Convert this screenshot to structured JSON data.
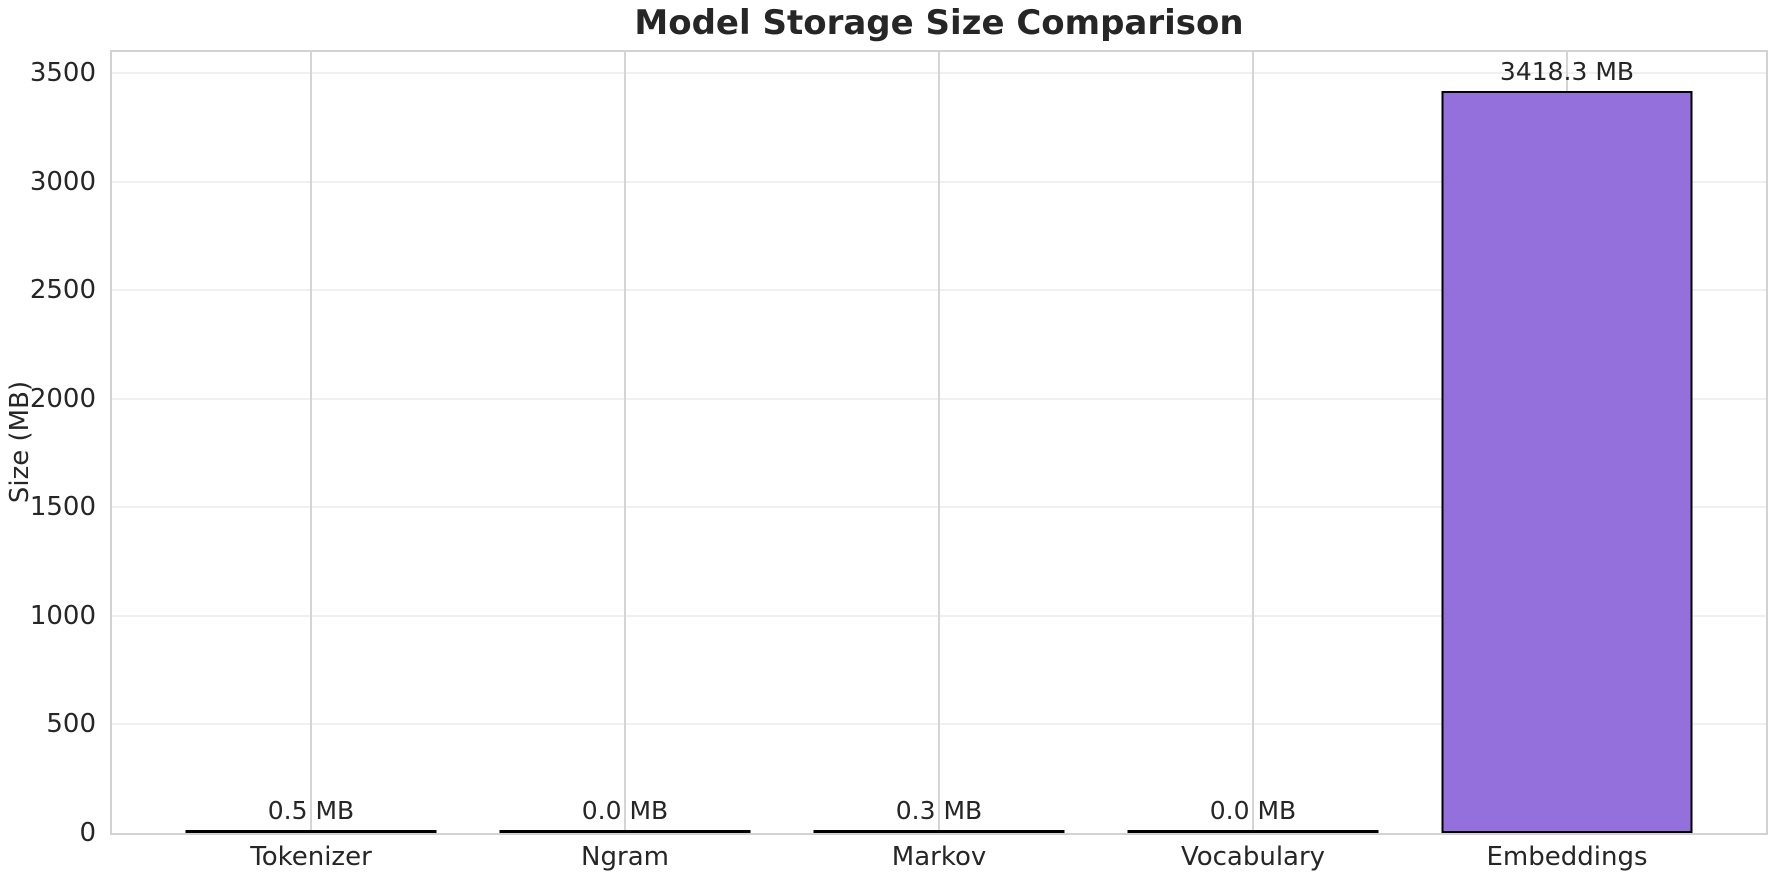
{
  "chart_data": {
    "type": "bar",
    "title": "Model Storage Size Comparison",
    "ylabel": "Size (MB)",
    "xlabel": "",
    "categories": [
      "Tokenizer",
      "Ngram",
      "Markov",
      "Vocabulary",
      "Embeddings"
    ],
    "values": [
      0.5,
      0.0,
      0.3,
      0.0,
      3418.3
    ],
    "value_labels": [
      "0.5 MB",
      "0.0 MB",
      "0.3 MB",
      "0.0 MB",
      "3418.3 MB"
    ],
    "yticks": [
      0,
      500,
      1000,
      1500,
      2000,
      2500,
      3000,
      3500
    ],
    "ylim": [
      0,
      3598
    ],
    "grid": true,
    "legend": false,
    "bar_color": "#9370DB",
    "bar_edge_color": "#000000",
    "text_color": "#262626",
    "grid_color_h": "#f0f0f0",
    "grid_color_v": "#d5d5d5",
    "spine_color": "#d2d2d2",
    "background_color": "#ffffff"
  }
}
